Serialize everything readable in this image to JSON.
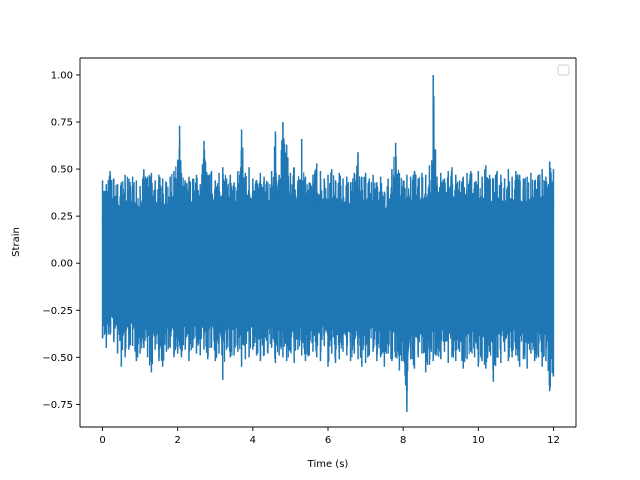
{
  "chart_data": {
    "type": "line",
    "title": "",
    "xlabel": "Time (s)",
    "ylabel": "Strain",
    "xlim": [
      -0.6,
      12.6
    ],
    "ylim": [
      -0.87,
      1.09
    ],
    "xticks": [
      0,
      2,
      4,
      6,
      8,
      10,
      12
    ],
    "xtick_labels": [
      "0",
      "2",
      "4",
      "6",
      "8",
      "10",
      "12"
    ],
    "yticks": [
      -0.75,
      -0.5,
      -0.25,
      0.0,
      0.25,
      0.5,
      0.75,
      1.0
    ],
    "ytick_labels": [
      "−0.75",
      "−0.50",
      "−0.25",
      "0.00",
      "0.25",
      "0.50",
      "0.75",
      "1.00"
    ],
    "grid": false,
    "legend": {
      "placement": "top-right",
      "entries": []
    },
    "series": [
      {
        "color": "#1f77b4",
        "x_range": [
          0.0,
          12.0
        ],
        "x": [
          0.0,
          0.1,
          0.2,
          0.3,
          0.4,
          0.5,
          0.6,
          0.7,
          0.8,
          0.9,
          1.0,
          1.1,
          1.2,
          1.3,
          1.4,
          1.5,
          1.6,
          1.7,
          1.8,
          1.9,
          2.0,
          2.05,
          2.1,
          2.2,
          2.3,
          2.4,
          2.5,
          2.6,
          2.7,
          2.8,
          2.9,
          3.0,
          3.1,
          3.2,
          3.3,
          3.4,
          3.5,
          3.6,
          3.7,
          3.8,
          3.9,
          4.0,
          4.1,
          4.2,
          4.3,
          4.4,
          4.5,
          4.6,
          4.7,
          4.8,
          4.9,
          5.0,
          5.1,
          5.2,
          5.3,
          5.4,
          5.5,
          5.6,
          5.7,
          5.8,
          5.9,
          6.0,
          6.1,
          6.2,
          6.3,
          6.4,
          6.5,
          6.6,
          6.7,
          6.8,
          6.9,
          7.0,
          7.1,
          7.2,
          7.3,
          7.4,
          7.5,
          7.6,
          7.7,
          7.8,
          7.9,
          8.0,
          8.1,
          8.2,
          8.3,
          8.4,
          8.5,
          8.6,
          8.7,
          8.75,
          8.8,
          8.9,
          9.0,
          9.1,
          9.2,
          9.3,
          9.4,
          9.5,
          9.6,
          9.7,
          9.8,
          9.9,
          10.0,
          10.1,
          10.2,
          10.3,
          10.4,
          10.5,
          10.6,
          10.7,
          10.8,
          10.9,
          11.0,
          11.1,
          11.2,
          11.3,
          11.4,
          11.5,
          11.6,
          11.7,
          11.8,
          11.9,
          12.0
        ],
        "upper": [
          0.44,
          0.42,
          0.49,
          0.45,
          0.42,
          0.43,
          0.47,
          0.45,
          0.46,
          0.44,
          0.41,
          0.5,
          0.46,
          0.48,
          0.44,
          0.47,
          0.45,
          0.43,
          0.46,
          0.49,
          0.55,
          0.73,
          0.48,
          0.44,
          0.46,
          0.45,
          0.47,
          0.42,
          0.65,
          0.47,
          0.49,
          0.44,
          0.48,
          0.51,
          0.45,
          0.47,
          0.43,
          0.49,
          0.71,
          0.48,
          0.51,
          0.45,
          0.44,
          0.48,
          0.46,
          0.43,
          0.49,
          0.7,
          0.47,
          0.75,
          0.63,
          0.48,
          0.51,
          0.44,
          0.66,
          0.46,
          0.43,
          0.47,
          0.53,
          0.49,
          0.45,
          0.47,
          0.5,
          0.44,
          0.48,
          0.45,
          0.46,
          0.43,
          0.48,
          0.59,
          0.46,
          0.48,
          0.45,
          0.47,
          0.43,
          0.46,
          0.38,
          0.45,
          0.5,
          0.64,
          0.48,
          0.44,
          0.47,
          0.46,
          0.49,
          0.45,
          0.48,
          0.47,
          0.52,
          0.44,
          1.0,
          0.46,
          0.48,
          0.45,
          0.49,
          0.51,
          0.47,
          0.44,
          0.46,
          0.48,
          0.49,
          0.43,
          0.49,
          0.46,
          0.52,
          0.47,
          0.45,
          0.49,
          0.47,
          0.45,
          0.5,
          0.46,
          0.49,
          0.47,
          0.45,
          0.46,
          0.48,
          0.44,
          0.47,
          0.5,
          0.46,
          0.54,
          0.5
        ],
        "lower": [
          -0.4,
          -0.45,
          -0.38,
          -0.42,
          -0.48,
          -0.55,
          -0.5,
          -0.46,
          -0.44,
          -0.52,
          -0.48,
          -0.45,
          -0.5,
          -0.58,
          -0.46,
          -0.52,
          -0.55,
          -0.47,
          -0.45,
          -0.5,
          -0.48,
          -0.44,
          -0.5,
          -0.46,
          -0.52,
          -0.45,
          -0.48,
          -0.49,
          -0.46,
          -0.51,
          -0.45,
          -0.52,
          -0.48,
          -0.62,
          -0.46,
          -0.5,
          -0.49,
          -0.47,
          -0.55,
          -0.51,
          -0.5,
          -0.46,
          -0.49,
          -0.52,
          -0.49,
          -0.48,
          -0.45,
          -0.53,
          -0.49,
          -0.5,
          -0.52,
          -0.47,
          -0.53,
          -0.46,
          -0.49,
          -0.52,
          -0.49,
          -0.47,
          -0.5,
          -0.52,
          -0.44,
          -0.55,
          -0.48,
          -0.53,
          -0.51,
          -0.47,
          -0.49,
          -0.52,
          -0.48,
          -0.51,
          -0.55,
          -0.53,
          -0.49,
          -0.47,
          -0.52,
          -0.5,
          -0.55,
          -0.48,
          -0.52,
          -0.5,
          -0.57,
          -0.52,
          -0.79,
          -0.51,
          -0.56,
          -0.5,
          -0.48,
          -0.58,
          -0.54,
          -0.47,
          -0.52,
          -0.49,
          -0.51,
          -0.47,
          -0.53,
          -0.5,
          -0.52,
          -0.47,
          -0.56,
          -0.51,
          -0.47,
          -0.5,
          -0.55,
          -0.52,
          -0.56,
          -0.47,
          -0.63,
          -0.5,
          -0.53,
          -0.47,
          -0.52,
          -0.5,
          -0.49,
          -0.55,
          -0.51,
          -0.56,
          -0.48,
          -0.52,
          -0.5,
          -0.55,
          -0.52,
          -0.68,
          -0.6
        ]
      }
    ]
  }
}
